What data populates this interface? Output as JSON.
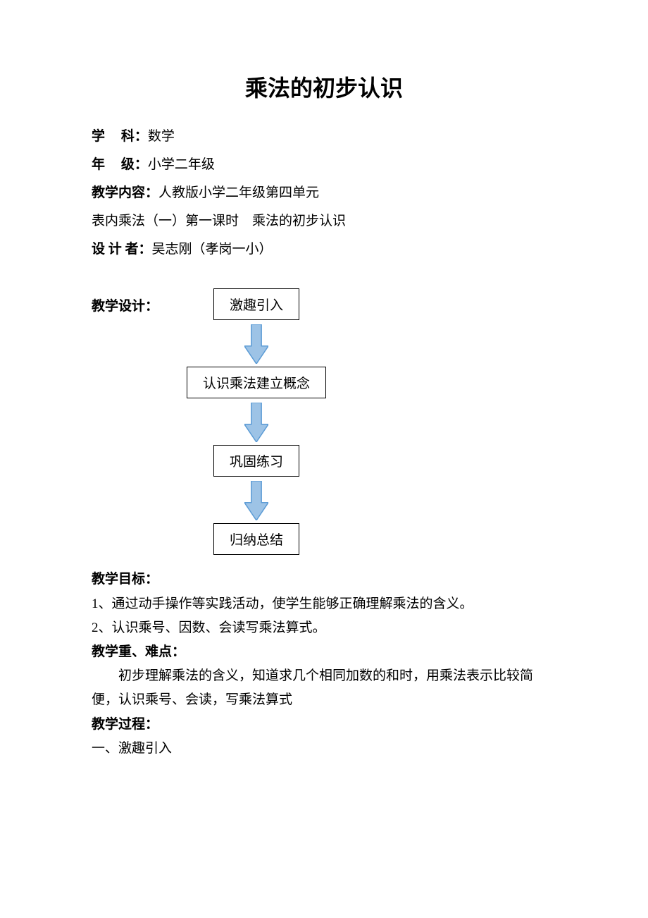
{
  "title": "乘法的初步认识",
  "meta": {
    "subject_label": "学",
    "subject_label2": "科：",
    "subject_value": "数学",
    "grade_label": "年",
    "grade_label2": "级：",
    "grade_value": "小学二年级",
    "content_label": "教学内容：",
    "content_value": "人教版小学二年级第四单元",
    "content_line2": "表内乘法（一）第一课时　乘法的初步认识",
    "designer_label": "设 计 者：",
    "designer_value": "吴志刚（孝岗一小）"
  },
  "design_label": "教学设计：",
  "flow": {
    "nodes": [
      "激趣引入",
      "认识乘法建立概念",
      "巩固练习",
      "归纳总结"
    ],
    "box_border": "#000000",
    "arrow_fill": "#9dc3e6",
    "arrow_stroke": "#5b9bd5",
    "arrow_width": 34,
    "arrow_height": 56
  },
  "goals": {
    "heading": "教学目标：",
    "lines": [
      "1、通过动手操作等实践活动，使学生能够正确理解乘法的含义。",
      "2、认识乘号、因数、会读写乘法算式。"
    ]
  },
  "key": {
    "heading": "教学重、难点：",
    "body": "初步理解乘法的含义，知道求几个相同加数的和时，用乘法表示比较简便，认识乘号、会读，写乘法算式"
  },
  "process": {
    "heading": "教学过程：",
    "line1": "一、激趣引入"
  },
  "colors": {
    "bg": "#ffffff",
    "text": "#000000"
  }
}
